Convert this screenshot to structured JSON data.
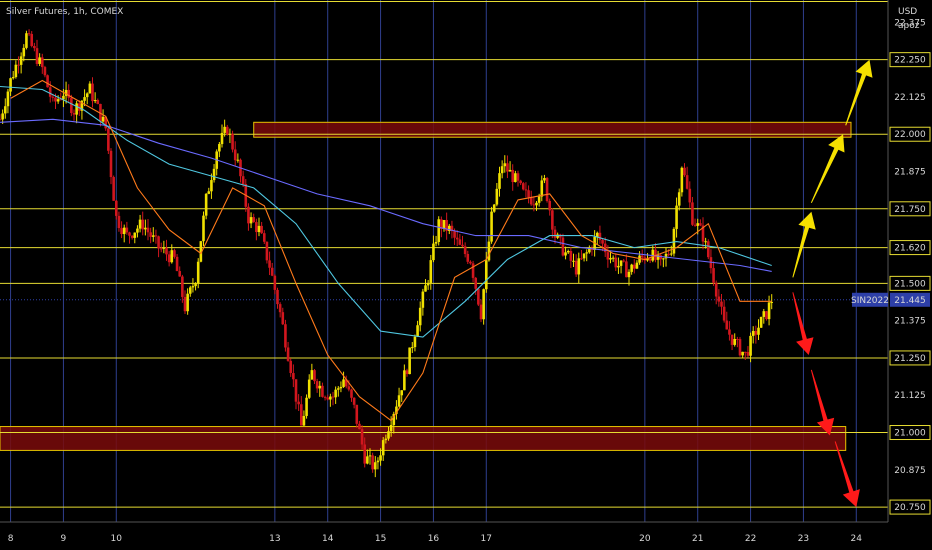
{
  "chart_data": {
    "type": "candlestick",
    "title": "Silver Futures, 1h, COMEX",
    "currency": "USD",
    "author": "apoz",
    "symbol_tag": "SIN2022",
    "last_price": 21.445,
    "ylim": [
      20.7,
      22.45
    ],
    "xlim": [
      7.8,
      24.6
    ],
    "x_ticks": [
      {
        "x": 8,
        "label": "8"
      },
      {
        "x": 9,
        "label": "9"
      },
      {
        "x": 10,
        "label": "10"
      },
      {
        "x": 13,
        "label": "13"
      },
      {
        "x": 14,
        "label": "14"
      },
      {
        "x": 15,
        "label": "15"
      },
      {
        "x": 16,
        "label": "16"
      },
      {
        "x": 17,
        "label": "17"
      },
      {
        "x": 20,
        "label": "20"
      },
      {
        "x": 21,
        "label": "21"
      },
      {
        "x": 22,
        "label": "22"
      },
      {
        "x": 23,
        "label": "23"
      },
      {
        "x": 24,
        "label": "24"
      }
    ],
    "y_ticks": [
      {
        "v": 22.375,
        "label": "22.375"
      },
      {
        "v": 22.25,
        "label": "22.250"
      },
      {
        "v": 22.125,
        "label": "22.125"
      },
      {
        "v": 22.0,
        "label": "22.000"
      },
      {
        "v": 21.875,
        "label": "21.875"
      },
      {
        "v": 21.75,
        "label": "21.750"
      },
      {
        "v": 21.62,
        "label": "21.620"
      },
      {
        "v": 21.5,
        "label": "21.500"
      },
      {
        "v": 21.375,
        "label": "21.375"
      },
      {
        "v": 21.25,
        "label": "21.250"
      },
      {
        "v": 21.125,
        "label": "21.125"
      },
      {
        "v": 21.0,
        "label": "21.000"
      },
      {
        "v": 20.875,
        "label": "20.875"
      },
      {
        "v": 20.75,
        "label": "20.750"
      }
    ],
    "highlighted_levels": [
      22.25,
      22.0,
      21.75,
      21.62,
      21.5,
      21.25,
      21.0,
      20.75
    ],
    "top_level": 22.445,
    "zones": [
      {
        "x0": 12.6,
        "x1": 23.9,
        "y0": 21.99,
        "y1": 22.04
      },
      {
        "x0": 7.8,
        "x1": 23.8,
        "y0": 20.94,
        "y1": 21.02
      }
    ],
    "price_path": [
      [
        7.8,
        22.05
      ],
      [
        8.0,
        22.18
      ],
      [
        8.3,
        22.33
      ],
      [
        8.6,
        22.22
      ],
      [
        8.8,
        22.1
      ],
      [
        9.0,
        22.14
      ],
      [
        9.2,
        22.08
      ],
      [
        9.5,
        22.15
      ],
      [
        9.8,
        22.02
      ],
      [
        10.0,
        21.72
      ],
      [
        10.2,
        21.66
      ],
      [
        10.5,
        21.7
      ],
      [
        10.8,
        21.62
      ],
      [
        11.1,
        21.58
      ],
      [
        11.3,
        21.42
      ],
      [
        11.5,
        21.52
      ],
      [
        11.7,
        21.78
      ],
      [
        11.9,
        21.95
      ],
      [
        12.1,
        22.02
      ],
      [
        12.3,
        21.9
      ],
      [
        12.5,
        21.72
      ],
      [
        12.7,
        21.68
      ],
      [
        12.9,
        21.56
      ],
      [
        13.1,
        21.4
      ],
      [
        13.3,
        21.22
      ],
      [
        13.5,
        21.02
      ],
      [
        13.7,
        21.2
      ],
      [
        13.9,
        21.14
      ],
      [
        14.1,
        21.12
      ],
      [
        14.3,
        21.18
      ],
      [
        14.5,
        21.08
      ],
      [
        14.7,
        20.92
      ],
      [
        14.9,
        20.88
      ],
      [
        15.1,
        21.0
      ],
      [
        15.3,
        21.1
      ],
      [
        15.5,
        21.22
      ],
      [
        15.7,
        21.38
      ],
      [
        15.9,
        21.52
      ],
      [
        16.1,
        21.7
      ],
      [
        16.3,
        21.68
      ],
      [
        16.5,
        21.62
      ],
      [
        16.7,
        21.58
      ],
      [
        16.9,
        21.4
      ],
      [
        17.1,
        21.72
      ],
      [
        17.3,
        21.9
      ],
      [
        17.5,
        21.86
      ],
      [
        17.7,
        21.8
      ],
      [
        17.9,
        21.78
      ],
      [
        18.1,
        21.84
      ],
      [
        18.3,
        21.66
      ],
      [
        18.5,
        21.6
      ],
      [
        18.7,
        21.55
      ],
      [
        18.9,
        21.6
      ],
      [
        19.1,
        21.66
      ],
      [
        19.3,
        21.6
      ],
      [
        19.5,
        21.56
      ],
      [
        19.7,
        21.54
      ],
      [
        19.9,
        21.58
      ],
      [
        20.1,
        21.6
      ],
      [
        20.3,
        21.56
      ],
      [
        20.5,
        21.62
      ],
      [
        20.7,
        21.9
      ],
      [
        20.9,
        21.72
      ],
      [
        21.1,
        21.66
      ],
      [
        21.3,
        21.52
      ],
      [
        21.5,
        21.36
      ],
      [
        21.7,
        21.3
      ],
      [
        21.9,
        21.26
      ],
      [
        22.1,
        21.34
      ],
      [
        22.3,
        21.4
      ],
      [
        22.4,
        21.445
      ]
    ],
    "ma_fast": [
      [
        8.0,
        22.12
      ],
      [
        8.6,
        22.18
      ],
      [
        9.2,
        22.12
      ],
      [
        9.8,
        22.06
      ],
      [
        10.4,
        21.82
      ],
      [
        11.0,
        21.68
      ],
      [
        11.6,
        21.6
      ],
      [
        12.2,
        21.82
      ],
      [
        12.8,
        21.76
      ],
      [
        13.4,
        21.5
      ],
      [
        14.0,
        21.26
      ],
      [
        14.6,
        21.12
      ],
      [
        15.2,
        21.04
      ],
      [
        15.8,
        21.2
      ],
      [
        16.4,
        21.52
      ],
      [
        17.0,
        21.58
      ],
      [
        17.6,
        21.78
      ],
      [
        18.2,
        21.8
      ],
      [
        18.8,
        21.66
      ],
      [
        19.4,
        21.6
      ],
      [
        20.0,
        21.58
      ],
      [
        20.6,
        21.62
      ],
      [
        21.2,
        21.7
      ],
      [
        21.8,
        21.44
      ],
      [
        22.4,
        21.44
      ]
    ],
    "ma_mid": [
      [
        7.8,
        22.16
      ],
      [
        8.6,
        22.15
      ],
      [
        9.4,
        22.08
      ],
      [
        10.2,
        21.98
      ],
      [
        11.0,
        21.9
      ],
      [
        11.8,
        21.86
      ],
      [
        12.6,
        21.82
      ],
      [
        13.4,
        21.7
      ],
      [
        14.2,
        21.5
      ],
      [
        15.0,
        21.34
      ],
      [
        15.8,
        21.32
      ],
      [
        16.6,
        21.44
      ],
      [
        17.4,
        21.58
      ],
      [
        18.2,
        21.66
      ],
      [
        19.0,
        21.66
      ],
      [
        19.8,
        21.62
      ],
      [
        20.6,
        21.64
      ],
      [
        21.4,
        21.62
      ],
      [
        22.4,
        21.56
      ]
    ],
    "ma_slow": [
      [
        7.8,
        22.04
      ],
      [
        8.8,
        22.05
      ],
      [
        9.8,
        22.03
      ],
      [
        10.8,
        21.97
      ],
      [
        11.8,
        21.92
      ],
      [
        12.8,
        21.86
      ],
      [
        13.8,
        21.8
      ],
      [
        14.8,
        21.76
      ],
      [
        15.8,
        21.7
      ],
      [
        16.8,
        21.66
      ],
      [
        17.8,
        21.66
      ],
      [
        18.8,
        21.62
      ],
      [
        19.8,
        21.6
      ],
      [
        20.8,
        21.58
      ],
      [
        21.8,
        21.56
      ],
      [
        22.4,
        21.54
      ]
    ],
    "arrows": [
      {
        "color": "#f5e000",
        "x0": 22.8,
        "y0": 21.52,
        "x1": 23.15,
        "y1": 21.74
      },
      {
        "color": "#f5e000",
        "x0": 23.15,
        "y0": 21.77,
        "x1": 23.75,
        "y1": 22.0
      },
      {
        "color": "#f5e000",
        "x0": 23.8,
        "y0": 22.03,
        "x1": 24.25,
        "y1": 22.25
      },
      {
        "color": "#ff1a1a",
        "x0": 22.8,
        "y0": 21.47,
        "x1": 23.1,
        "y1": 21.26
      },
      {
        "color": "#ff1a1a",
        "x0": 23.15,
        "y0": 21.21,
        "x1": 23.5,
        "y1": 20.99
      },
      {
        "color": "#ff1a1a",
        "x0": 23.6,
        "y0": 20.97,
        "x1": 24.0,
        "y1": 20.75
      }
    ],
    "colors": {
      "background": "#000000",
      "grid_vertical": "#2f3f8f",
      "level_line": "#e6dc32",
      "zone_fill": "#7a0a0a",
      "zone_border": "#e6c400",
      "candle_up": "#f0e000",
      "candle_down": "#d2161e",
      "ma_fast": "#ff7a1a",
      "ma_mid": "#4fc7e0",
      "ma_slow": "#6a6aff",
      "price_tag": "#2d3fa8",
      "axis_text": "#d8d8d8"
    }
  }
}
